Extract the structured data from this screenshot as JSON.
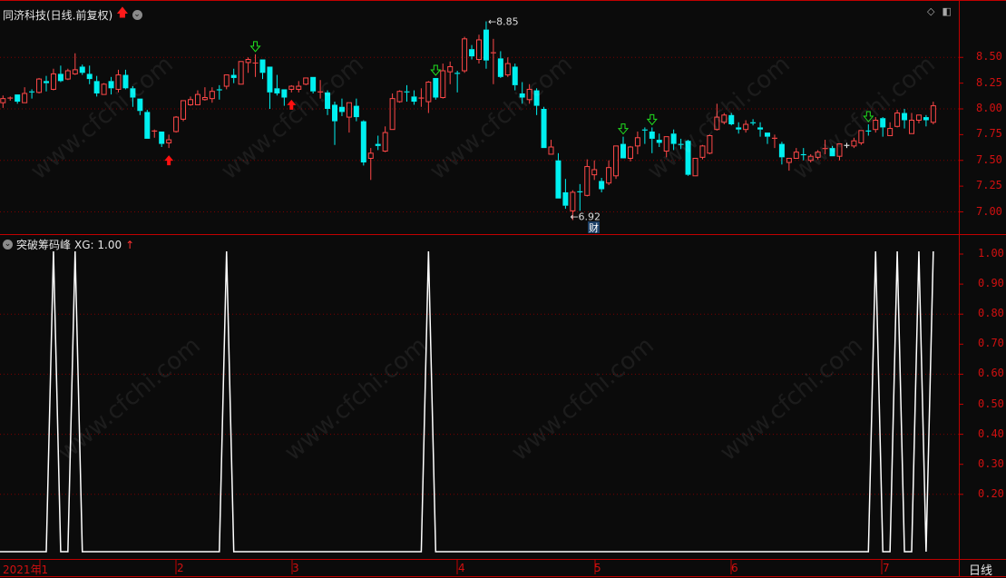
{
  "main_panel": {
    "title": "同济科技(日线.前复权)",
    "title_icons": [
      "red-up-arrow-icon",
      "dropdown-circle-icon"
    ],
    "price_axis": [
      "8.50",
      "8.25",
      "8.00",
      "7.75",
      "7.50",
      "7.25",
      "7.00"
    ],
    "high_label": "8.85",
    "low_label": "6.92",
    "finance_badge": "财",
    "corner_icons": [
      "diamond-icon",
      "panel-toggle-icon"
    ]
  },
  "indicator_panel": {
    "title": "突破筹码峰",
    "value_label": "XG: 1.00",
    "value_arrow": "↑",
    "axis": [
      "1.00",
      "0.90",
      "0.80",
      "0.70",
      "0.60",
      "0.50",
      "0.40",
      "0.30",
      "0.20"
    ]
  },
  "time_axis": {
    "months": [
      "2021年1",
      "2",
      "3",
      "4",
      "5",
      "6",
      "7"
    ],
    "period": "日线"
  },
  "watermark": "www.cfchi.com",
  "colors": {
    "up": "#ff4848",
    "down": "#00f0f0",
    "signal_line": "#ffffff",
    "axis": "#c00000",
    "grid": "#7a0000",
    "buy_arrow": "#ff1010",
    "sell_arrow": "#20e020"
  },
  "chart_data": {
    "type": "candlestick",
    "ohlc": [
      [
        8.06,
        8.13,
        8.01,
        8.1
      ],
      [
        8.1,
        8.12,
        8.08,
        8.11
      ],
      [
        8.14,
        8.14,
        8.05,
        8.07
      ],
      [
        8.06,
        8.21,
        8.06,
        8.15
      ],
      [
        8.17,
        8.19,
        8.1,
        8.16
      ],
      [
        8.16,
        8.3,
        8.15,
        8.29
      ],
      [
        8.27,
        8.32,
        8.17,
        8.25
      ],
      [
        8.19,
        8.39,
        8.18,
        8.34
      ],
      [
        8.34,
        8.42,
        8.26,
        8.27
      ],
      [
        8.29,
        8.39,
        8.28,
        8.37
      ],
      [
        8.34,
        8.54,
        8.33,
        8.38
      ],
      [
        8.41,
        8.43,
        8.33,
        8.35
      ],
      [
        8.34,
        8.42,
        8.24,
        8.29
      ],
      [
        8.27,
        8.32,
        8.12,
        8.15
      ],
      [
        8.14,
        8.25,
        8.14,
        8.24
      ],
      [
        8.27,
        8.31,
        8.14,
        8.2
      ],
      [
        8.19,
        8.38,
        8.16,
        8.33
      ],
      [
        8.33,
        8.38,
        8.19,
        8.2
      ],
      [
        8.2,
        8.22,
        8.02,
        8.11
      ],
      [
        8.1,
        8.1,
        7.94,
        7.98
      ],
      [
        7.97,
        7.99,
        7.71,
        7.71
      ],
      [
        7.78,
        7.8,
        7.72,
        7.79
      ],
      [
        7.78,
        7.78,
        7.63,
        7.66
      ],
      [
        7.67,
        7.75,
        7.62,
        7.7
      ],
      [
        7.78,
        7.93,
        7.77,
        7.92
      ],
      [
        7.9,
        8.08,
        7.88,
        8.08
      ],
      [
        8.04,
        8.12,
        8.03,
        8.09
      ],
      [
        8.04,
        8.18,
        8.04,
        8.14
      ],
      [
        8.09,
        8.21,
        8.08,
        8.11
      ],
      [
        8.1,
        8.21,
        8.06,
        8.17
      ],
      [
        8.19,
        8.23,
        8.09,
        8.18
      ],
      [
        8.22,
        8.33,
        8.19,
        8.33
      ],
      [
        8.33,
        8.39,
        8.25,
        8.3
      ],
      [
        8.24,
        8.46,
        8.24,
        8.46
      ],
      [
        8.45,
        8.5,
        8.35,
        8.48
      ],
      [
        8.45,
        8.53,
        8.31,
        8.45
      ],
      [
        8.48,
        8.48,
        8.29,
        8.35
      ],
      [
        8.41,
        8.41,
        8.0,
        8.16
      ],
      [
        8.2,
        8.33,
        8.13,
        8.15
      ],
      [
        8.19,
        8.19,
        8.03,
        8.11
      ],
      [
        8.19,
        8.23,
        8.16,
        8.22
      ],
      [
        8.19,
        8.27,
        8.16,
        8.22
      ],
      [
        8.24,
        8.3,
        8.23,
        8.3
      ],
      [
        8.31,
        8.31,
        8.15,
        8.17
      ],
      [
        8.16,
        8.28,
        8.1,
        8.17
      ],
      [
        8.16,
        8.18,
        7.94,
        8.0
      ],
      [
        8.04,
        8.07,
        7.65,
        7.88
      ],
      [
        8.02,
        8.1,
        7.93,
        7.97
      ],
      [
        7.92,
        8.06,
        7.77,
        8.06
      ],
      [
        8.03,
        8.1,
        7.88,
        7.92
      ],
      [
        7.88,
        7.89,
        7.45,
        7.48
      ],
      [
        7.52,
        7.62,
        7.31,
        7.57
      ],
      [
        7.66,
        7.74,
        7.6,
        7.64
      ],
      [
        7.59,
        7.83,
        7.58,
        7.77
      ],
      [
        7.8,
        8.15,
        7.8,
        8.1
      ],
      [
        8.07,
        8.18,
        8.06,
        8.17
      ],
      [
        8.17,
        8.23,
        8.07,
        8.16
      ],
      [
        8.12,
        8.18,
        8.04,
        8.07
      ],
      [
        8.1,
        8.2,
        8.02,
        8.11
      ],
      [
        8.07,
        8.27,
        7.96,
        8.26
      ],
      [
        8.3,
        8.3,
        8.09,
        8.11
      ],
      [
        8.11,
        8.44,
        8.1,
        8.37
      ],
      [
        8.36,
        8.46,
        8.24,
        8.41
      ],
      [
        8.35,
        8.37,
        8.16,
        8.34
      ],
      [
        8.37,
        8.7,
        8.35,
        8.68
      ],
      [
        8.58,
        8.62,
        8.48,
        8.51
      ],
      [
        8.48,
        8.72,
        8.44,
        8.67
      ],
      [
        8.77,
        8.85,
        8.39,
        8.47
      ],
      [
        8.54,
        8.68,
        8.24,
        8.55
      ],
      [
        8.49,
        8.56,
        8.3,
        8.31
      ],
      [
        8.33,
        8.5,
        8.31,
        8.44
      ],
      [
        8.41,
        8.44,
        8.18,
        8.23
      ],
      [
        8.15,
        8.26,
        8.05,
        8.11
      ],
      [
        8.09,
        8.24,
        8.05,
        8.19
      ],
      [
        8.18,
        8.2,
        7.94,
        8.03
      ],
      [
        8.0,
        8.02,
        7.62,
        7.62
      ],
      [
        7.56,
        7.7,
        7.56,
        7.63
      ],
      [
        7.5,
        7.57,
        7.13,
        7.13
      ],
      [
        7.19,
        7.32,
        7.03,
        7.06
      ],
      [
        7.01,
        7.21,
        6.92,
        7.19
      ],
      [
        7.2,
        7.27,
        7.01,
        7.19
      ],
      [
        7.16,
        7.51,
        7.15,
        7.44
      ],
      [
        7.36,
        7.5,
        7.31,
        7.41
      ],
      [
        7.3,
        7.33,
        7.19,
        7.22
      ],
      [
        7.28,
        7.5,
        7.26,
        7.43
      ],
      [
        7.35,
        7.64,
        7.32,
        7.64
      ],
      [
        7.66,
        7.73,
        7.52,
        7.52
      ],
      [
        7.52,
        7.64,
        7.49,
        7.63
      ],
      [
        7.64,
        7.78,
        7.56,
        7.72
      ],
      [
        7.8,
        7.82,
        7.66,
        7.79
      ],
      [
        7.78,
        7.82,
        7.57,
        7.71
      ],
      [
        7.7,
        7.76,
        7.63,
        7.67
      ],
      [
        7.59,
        7.73,
        7.53,
        7.73
      ],
      [
        7.76,
        7.8,
        7.6,
        7.66
      ],
      [
        7.66,
        7.71,
        7.61,
        7.65
      ],
      [
        7.69,
        7.7,
        7.35,
        7.36
      ],
      [
        7.35,
        7.52,
        7.35,
        7.52
      ],
      [
        7.53,
        7.65,
        7.51,
        7.64
      ],
      [
        7.57,
        7.75,
        7.56,
        7.74
      ],
      [
        7.8,
        8.05,
        7.79,
        7.92
      ],
      [
        7.87,
        7.96,
        7.85,
        7.94
      ],
      [
        7.94,
        7.96,
        7.84,
        7.85
      ],
      [
        7.82,
        7.87,
        7.76,
        7.8
      ],
      [
        7.8,
        7.89,
        7.77,
        7.85
      ],
      [
        7.87,
        7.9,
        7.84,
        7.86
      ],
      [
        7.82,
        7.87,
        7.73,
        7.8
      ],
      [
        7.77,
        7.77,
        7.66,
        7.73
      ],
      [
        7.71,
        7.75,
        7.62,
        7.72
      ],
      [
        7.66,
        7.68,
        7.46,
        7.53
      ],
      [
        7.48,
        7.52,
        7.4,
        7.52
      ],
      [
        7.52,
        7.62,
        7.52,
        7.58
      ],
      [
        7.56,
        7.62,
        7.5,
        7.55
      ],
      [
        7.5,
        7.56,
        7.48,
        7.54
      ],
      [
        7.53,
        7.6,
        7.51,
        7.58
      ],
      [
        7.61,
        7.7,
        7.56,
        7.62
      ],
      [
        7.62,
        7.64,
        7.54,
        7.54
      ],
      [
        7.54,
        7.66,
        7.5,
        7.66
      ],
      [
        7.65,
        7.67,
        7.62,
        7.65
      ],
      [
        7.64,
        7.72,
        7.62,
        7.69
      ],
      [
        7.67,
        7.79,
        7.65,
        7.79
      ],
      [
        7.79,
        7.85,
        7.74,
        7.78
      ],
      [
        7.8,
        7.92,
        7.77,
        7.89
      ],
      [
        7.91,
        7.92,
        7.73,
        7.82
      ],
      [
        7.74,
        7.87,
        7.74,
        7.81
      ],
      [
        7.83,
        7.99,
        7.82,
        7.96
      ],
      [
        7.96,
        8.0,
        7.81,
        7.89
      ],
      [
        7.76,
        7.96,
        7.76,
        7.89
      ],
      [
        7.89,
        7.94,
        7.86,
        7.94
      ],
      [
        7.92,
        7.94,
        7.83,
        7.89
      ],
      [
        7.87,
        8.07,
        7.85,
        8.03
      ]
    ],
    "doji_white_index": 117,
    "buy_signals": [
      23,
      40
    ],
    "sell_signals": [
      35,
      60,
      86,
      90,
      120
    ],
    "price_range": [
      6.85,
      8.95
    ],
    "xg_signal_days": [
      7,
      10,
      31,
      59,
      121,
      124,
      127,
      129
    ],
    "xg_range": [
      0,
      1
    ],
    "grid": true
  }
}
